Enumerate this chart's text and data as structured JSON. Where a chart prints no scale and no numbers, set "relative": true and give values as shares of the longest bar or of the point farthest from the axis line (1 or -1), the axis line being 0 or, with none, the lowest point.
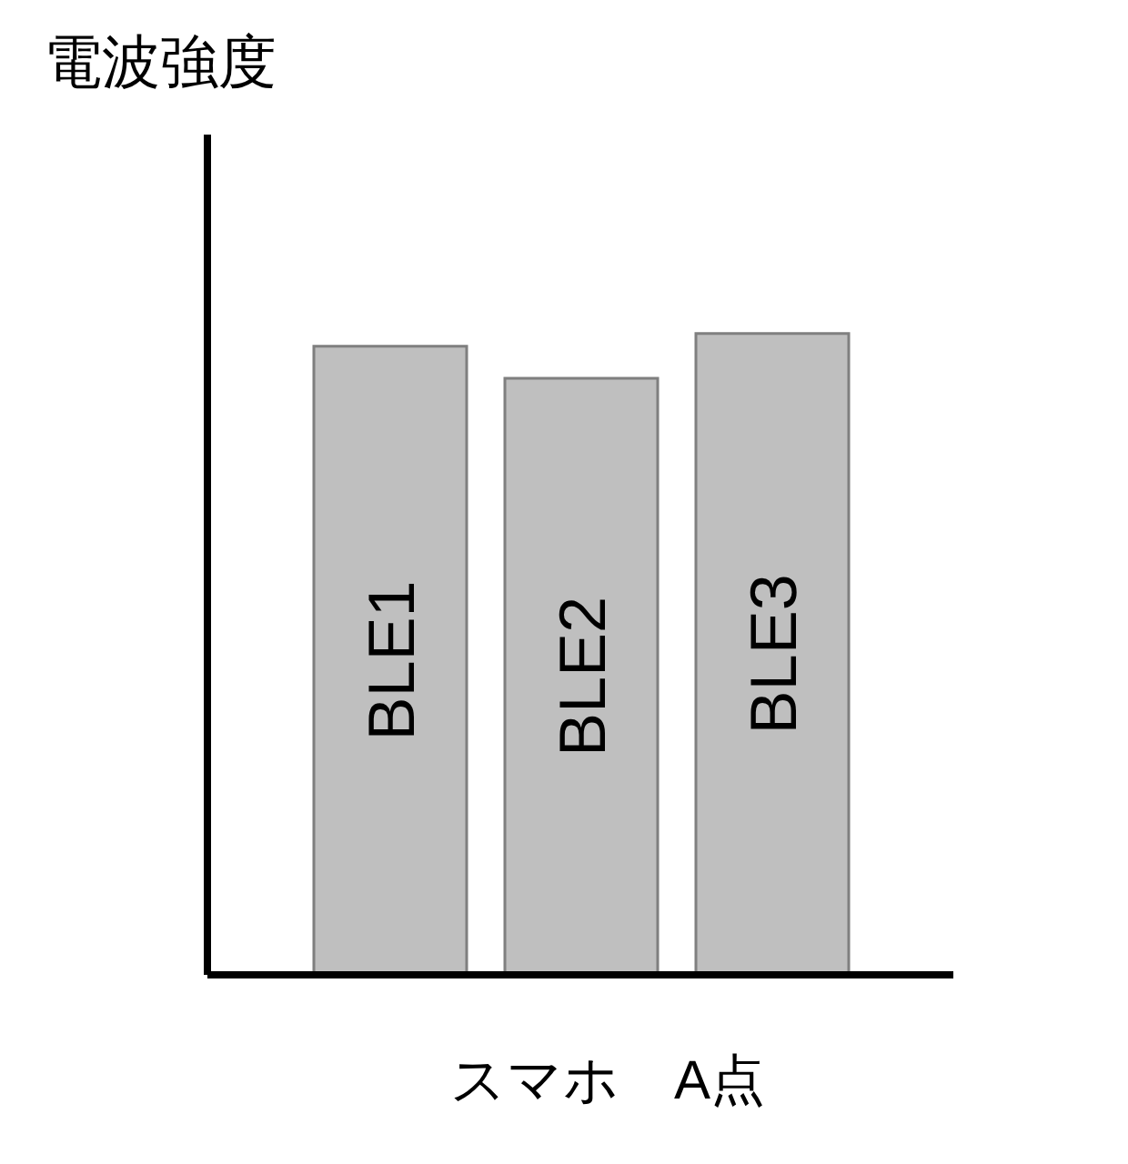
{
  "chart_data": {
    "type": "bar",
    "ylabel": "電波強度",
    "xlabel": "スマホ　A点",
    "categories": [
      "BLE1",
      "BLE2",
      "BLE3"
    ],
    "values": [
      0.98,
      0.93,
      1
    ],
    "colors": [
      "#bfbfbf",
      "#bfbfbf",
      "#bfbfbf"
    ],
    "relative": true
  }
}
